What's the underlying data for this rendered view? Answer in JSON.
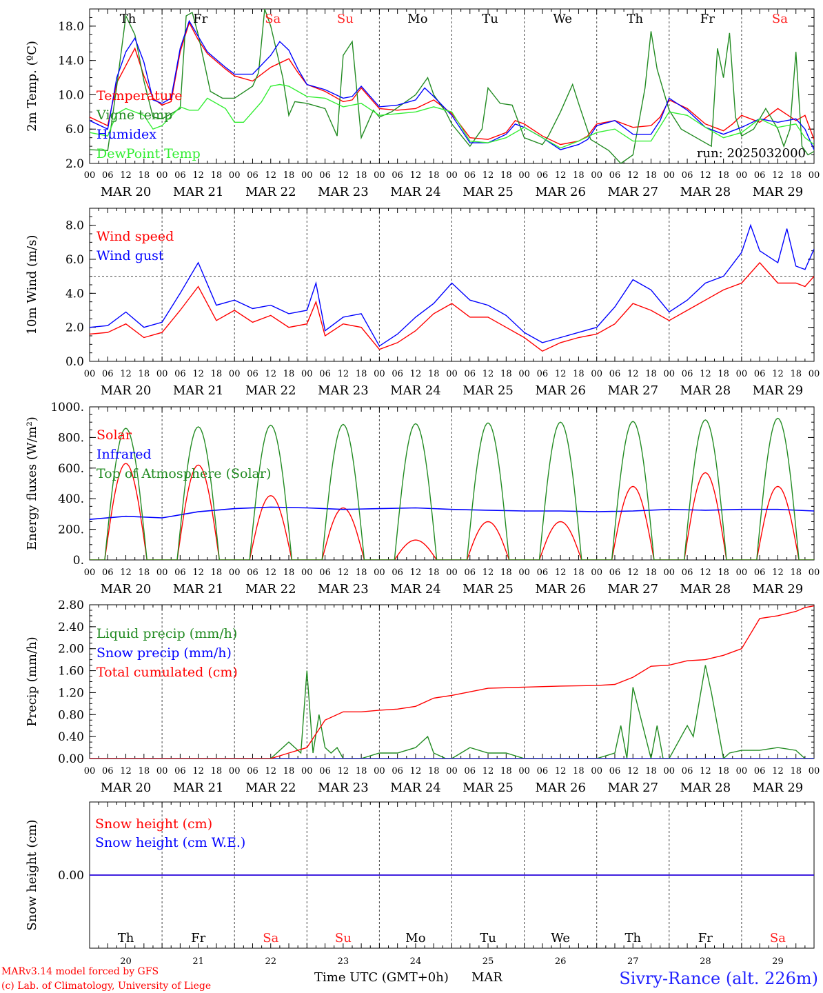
{
  "colors": {
    "red": "#ff0000",
    "darkgreen": "#228b22",
    "blue": "#0000ff",
    "lightgreen": "#33ee33",
    "weekend": "#ff2222",
    "black": "#000000",
    "grid": "#555555"
  },
  "day_names": [
    "Th",
    "Fr",
    "Sa",
    "Su",
    "Mo",
    "Tu",
    "We",
    "Th",
    "Fr",
    "Sa"
  ],
  "weekend_flags": [
    false,
    false,
    true,
    true,
    false,
    false,
    false,
    false,
    false,
    true
  ],
  "date_labels": [
    "MAR 20",
    "MAR 21",
    "MAR 22",
    "MAR 23",
    "MAR 24",
    "MAR 25",
    "MAR 26",
    "MAR 27",
    "MAR 28",
    "MAR 29"
  ],
  "hour_labels": [
    "00",
    "06",
    "12",
    "18"
  ],
  "bottom": {
    "day_numbers": [
      "20",
      "21",
      "22",
      "23",
      "24",
      "25",
      "26",
      "27",
      "28",
      "29"
    ],
    "xlabel": "Time UTC (GMT+0h)",
    "month": "MAR",
    "credit_line1": "MARv3.14 model forced by GFS",
    "credit_line2": "(c) Lab. of Climatology, University of Liege",
    "station": "Sivry-Rance (alt. 226m)"
  },
  "chart_data": [
    {
      "type": "line",
      "ylabel": "2m Temp. (ºC)",
      "ylim": [
        2,
        20
      ],
      "yticks": [
        "2.0",
        "6.0",
        "10.0",
        "14.0",
        "18.0"
      ],
      "annotation": "run: 2025032000",
      "series": [
        {
          "name": "Temperature",
          "color": "#ff0000",
          "x_hours": [
            0,
            6,
            9,
            15,
            18,
            21,
            24,
            27,
            30,
            33,
            36,
            39,
            45,
            48,
            54,
            60,
            66,
            69,
            72,
            78,
            84,
            87,
            90,
            96,
            102,
            105,
            108,
            114,
            120,
            126,
            132,
            138,
            141,
            144,
            150,
            156,
            162,
            165,
            168,
            174,
            180,
            186,
            189,
            192,
            198,
            204,
            210,
            213,
            216,
            222,
            228,
            234,
            237,
            240
          ],
          "values": [
            7.4,
            6.4,
            11.4,
            15.4,
            12.2,
            9.6,
            8.8,
            9.2,
            15,
            18.4,
            16.4,
            14.8,
            13,
            12.2,
            11.6,
            13.2,
            14.2,
            12.6,
            11.2,
            10.4,
            9.2,
            9.4,
            10.8,
            8.4,
            8.2,
            8.3,
            8.4,
            9.4,
            7.8,
            5,
            4.8,
            5.6,
            7,
            6.6,
            5.2,
            4.2,
            4.6,
            5.2,
            6.6,
            7,
            6.2,
            6.4,
            7.4,
            9.4,
            8.4,
            6.6,
            5.8,
            6.6,
            7.6,
            6.8,
            8.4,
            7,
            7.6,
            4.8
          ]
        },
        {
          "name": "Vigne temp",
          "color": "#228b22",
          "x_hours": [
            0,
            6,
            9,
            12,
            15,
            18,
            21,
            24,
            30,
            32,
            34,
            36,
            40,
            44,
            48,
            54,
            56,
            58,
            60,
            64,
            66,
            68,
            72,
            78,
            82,
            84,
            87,
            90,
            94,
            96,
            100,
            104,
            108,
            112,
            114,
            118,
            120,
            126,
            130,
            132,
            136,
            140,
            144,
            150,
            152,
            156,
            160,
            162,
            166,
            172,
            176,
            180,
            184,
            186,
            188,
            190,
            192,
            196,
            202,
            206,
            208,
            210,
            212,
            214,
            216,
            220,
            224,
            228,
            230,
            232,
            234,
            236,
            238,
            240
          ],
          "values": [
            3.6,
            3.5,
            11,
            19.2,
            17,
            11.6,
            7.4,
            7.2,
            8.4,
            19.2,
            19.6,
            17,
            10.4,
            9.6,
            9.6,
            11,
            12.6,
            20,
            18,
            12,
            7.6,
            9.2,
            9,
            8.4,
            5.2,
            14.6,
            16.2,
            5,
            8.2,
            7.4,
            8,
            9,
            10,
            12,
            10,
            8,
            6.6,
            4,
            6,
            10.8,
            9,
            8.8,
            5,
            4.2,
            5.2,
            8,
            11.2,
            9,
            4.8,
            3.5,
            2,
            3,
            10.8,
            17.4,
            13,
            10.6,
            8.2,
            6,
            4.8,
            4,
            15.4,
            12,
            17.2,
            7.4,
            5.2,
            6,
            8.4,
            6,
            4,
            6,
            15,
            4,
            3,
            3.4
          ]
        },
        {
          "name": "Humidex",
          "color": "#0000ff",
          "x_hours": [
            0,
            6,
            9,
            12,
            15,
            18,
            21,
            24,
            27,
            30,
            33,
            36,
            39,
            45,
            48,
            54,
            60,
            63,
            66,
            69,
            72,
            78,
            84,
            87,
            90,
            96,
            102,
            108,
            111,
            114,
            120,
            126,
            132,
            138,
            141,
            144,
            150,
            156,
            162,
            165,
            168,
            174,
            180,
            186,
            189,
            192,
            198,
            204,
            210,
            216,
            222,
            228,
            234,
            237,
            240
          ],
          "values": [
            7,
            6,
            12,
            15,
            16.6,
            13.8,
            9.4,
            9,
            9.6,
            15.4,
            18.6,
            16.8,
            15,
            13.2,
            12.4,
            12.4,
            14.6,
            16.2,
            15.2,
            13,
            11.2,
            10.6,
            9.6,
            9.8,
            11,
            8.6,
            8.8,
            9.4,
            10.8,
            9.8,
            7.6,
            4.4,
            4.4,
            5.4,
            6.6,
            6.2,
            5,
            3.6,
            4.2,
            4.8,
            6.4,
            7,
            5.4,
            5.4,
            7,
            9.6,
            8.2,
            6.2,
            5.4,
            6.2,
            7.2,
            6.8,
            7.2,
            6,
            3.6
          ]
        },
        {
          "name": "DewPoint Temp",
          "color": "#33ee33",
          "x_hours": [
            0,
            6,
            9,
            12,
            18,
            21,
            24,
            30,
            33,
            36,
            39,
            45,
            48,
            51,
            57,
            60,
            63,
            66,
            69,
            72,
            78,
            84,
            90,
            96,
            102,
            108,
            114,
            120,
            126,
            132,
            138,
            144,
            150,
            156,
            162,
            168,
            174,
            180,
            186,
            192,
            198,
            204,
            210,
            216,
            222,
            228,
            234,
            237,
            240
          ],
          "values": [
            5.6,
            5.2,
            7.8,
            8.4,
            7.6,
            6,
            6.4,
            8.6,
            8.2,
            8.2,
            9.6,
            8.4,
            6.8,
            6.8,
            9.2,
            11,
            11.2,
            11,
            10.4,
            9.8,
            9.6,
            8.6,
            9,
            7.6,
            7.8,
            8,
            8.6,
            8,
            4.6,
            4.4,
            5,
            6.2,
            5,
            3.8,
            4.6,
            5.6,
            6,
            4.6,
            4.6,
            8,
            7.6,
            6.2,
            5,
            5.6,
            7.2,
            6.2,
            6.6,
            5,
            4.2
          ]
        }
      ]
    },
    {
      "type": "line",
      "ylabel": "10m Wind (m/s)",
      "ylim": [
        0,
        9
      ],
      "yticks": [
        "0.0",
        "2.0",
        "4.0",
        "6.0",
        "8.0"
      ],
      "reference_line": 5.0,
      "series": [
        {
          "name": "Wind speed",
          "color": "#ff0000",
          "x_hours": [
            0,
            6,
            12,
            18,
            24,
            30,
            36,
            42,
            48,
            54,
            60,
            66,
            72,
            75,
            78,
            84,
            90,
            96,
            102,
            108,
            114,
            120,
            126,
            132,
            138,
            144,
            150,
            156,
            162,
            168,
            174,
            180,
            186,
            192,
            198,
            204,
            210,
            216,
            222,
            228,
            234,
            237,
            240
          ],
          "values": [
            1.6,
            1.7,
            2.2,
            1.4,
            1.7,
            3,
            4.4,
            2.4,
            3,
            2.3,
            2.7,
            2,
            2.2,
            3.5,
            1.5,
            2.2,
            2,
            0.7,
            1.1,
            1.8,
            2.8,
            3.4,
            2.6,
            2.6,
            2,
            1.4,
            0.6,
            1.1,
            1.4,
            1.6,
            2.2,
            3.4,
            3,
            2.4,
            3,
            3.6,
            4.2,
            4.6,
            5.8,
            4.6,
            4.6,
            4.4,
            5
          ]
        },
        {
          "name": "Wind gust",
          "color": "#0000ff",
          "x_hours": [
            0,
            6,
            12,
            18,
            24,
            30,
            36,
            42,
            48,
            54,
            60,
            66,
            72,
            75,
            78,
            84,
            90,
            96,
            102,
            108,
            114,
            120,
            126,
            132,
            138,
            144,
            150,
            156,
            162,
            168,
            174,
            180,
            186,
            192,
            198,
            204,
            210,
            216,
            219,
            222,
            228,
            231,
            234,
            237,
            240
          ],
          "values": [
            2,
            2.1,
            2.9,
            2,
            2.3,
            4,
            5.8,
            3.3,
            3.6,
            3.1,
            3.3,
            2.8,
            3,
            4.6,
            1.8,
            2.6,
            2.8,
            0.9,
            1.6,
            2.6,
            3.4,
            4.6,
            3.6,
            3.3,
            2.7,
            1.7,
            1.1,
            1.4,
            1.7,
            2,
            3.2,
            4.8,
            4.2,
            2.9,
            3.6,
            4.6,
            5,
            6.4,
            8,
            6.5,
            5.8,
            7.8,
            5.6,
            5.4,
            6.6
          ]
        }
      ]
    },
    {
      "type": "line",
      "ylabel": "Energy fluxes (W/m²)",
      "ylim": [
        0,
        1000
      ],
      "yticks": [
        "0.",
        "200.",
        "400.",
        "600.",
        "800.",
        "1000."
      ],
      "series": [
        {
          "name": "Solar",
          "color": "#ff0000",
          "daily_peaks": [
            630,
            620,
            420,
            340,
            130,
            250,
            250,
            480,
            570,
            480
          ]
        },
        {
          "name": "Infrared",
          "color": "#0000ff",
          "x_hours": [
            0,
            12,
            24,
            36,
            48,
            60,
            72,
            84,
            96,
            108,
            120,
            132,
            144,
            156,
            168,
            180,
            192,
            204,
            216,
            228,
            240
          ],
          "values": [
            265,
            285,
            275,
            315,
            335,
            345,
            340,
            330,
            335,
            340,
            330,
            325,
            320,
            320,
            315,
            320,
            330,
            325,
            330,
            330,
            320
          ]
        },
        {
          "name": "Top of Atmosphere (Solar)",
          "color": "#228b22",
          "daily_peaks": [
            860,
            870,
            880,
            885,
            890,
            895,
            900,
            905,
            915,
            925
          ]
        }
      ]
    },
    {
      "type": "line",
      "ylabel": "Precip (mm/h)",
      "ylim": [
        0,
        2.8
      ],
      "yticks": [
        "0.00",
        "0.40",
        "0.80",
        "1.20",
        "1.60",
        "2.00",
        "2.40",
        "2.80"
      ],
      "series": [
        {
          "name": "Liquid precip (mm/h)",
          "color": "#228b22",
          "x_hours": [
            0,
            60,
            66,
            70,
            72,
            74,
            76,
            78,
            80,
            82,
            84,
            90,
            96,
            102,
            108,
            112,
            114,
            118,
            120,
            126,
            132,
            138,
            144,
            150,
            156,
            162,
            168,
            174,
            176,
            178,
            180,
            186,
            188,
            190,
            192,
            198,
            200,
            204,
            206,
            210,
            212,
            216,
            222,
            228,
            234,
            237,
            240
          ],
          "values": [
            0,
            0,
            0.3,
            0.1,
            1.6,
            0.1,
            0.8,
            0.2,
            0.1,
            0.2,
            0,
            0,
            0.1,
            0.1,
            0.2,
            0.4,
            0.1,
            0,
            0,
            0.2,
            0.1,
            0.1,
            0,
            0,
            0,
            0,
            0,
            0.1,
            0.6,
            0,
            1.3,
            0,
            0.6,
            0,
            0,
            0.6,
            0.4,
            1.7,
            1.2,
            0,
            0.1,
            0.15,
            0.15,
            0.2,
            0.15,
            0,
            0
          ]
        },
        {
          "name": "Snow precip (mm/h)",
          "color": "#0000ff",
          "x_hours": [
            0,
            240
          ],
          "values": [
            0,
            0
          ]
        },
        {
          "name": "Total cumulated (cm)",
          "color": "#ff0000",
          "x_hours": [
            0,
            60,
            66,
            72,
            78,
            84,
            90,
            96,
            102,
            108,
            114,
            120,
            132,
            144,
            156,
            168,
            174,
            180,
            186,
            192,
            198,
            204,
            210,
            216,
            222,
            228,
            234,
            237,
            240
          ],
          "values": [
            0,
            0,
            0.1,
            0.2,
            0.7,
            0.85,
            0.85,
            0.88,
            0.9,
            0.95,
            1.1,
            1.15,
            1.28,
            1.3,
            1.32,
            1.33,
            1.35,
            1.48,
            1.68,
            1.7,
            1.78,
            1.8,
            1.88,
            2.0,
            2.55,
            2.6,
            2.68,
            2.75,
            2.78
          ]
        }
      ]
    },
    {
      "type": "line",
      "ylabel": "Snow height (cm)",
      "ylim": [
        -1,
        1
      ],
      "yticks": [
        "0.00"
      ],
      "series": [
        {
          "name": "Snow height (cm)",
          "color": "#ff0000",
          "x_hours": [
            0,
            240
          ],
          "values": [
            0,
            0
          ]
        },
        {
          "name": "Snow height (cm W.E.)",
          "color": "#0000ff",
          "x_hours": [
            0,
            240
          ],
          "values": [
            0,
            0
          ]
        }
      ]
    }
  ]
}
